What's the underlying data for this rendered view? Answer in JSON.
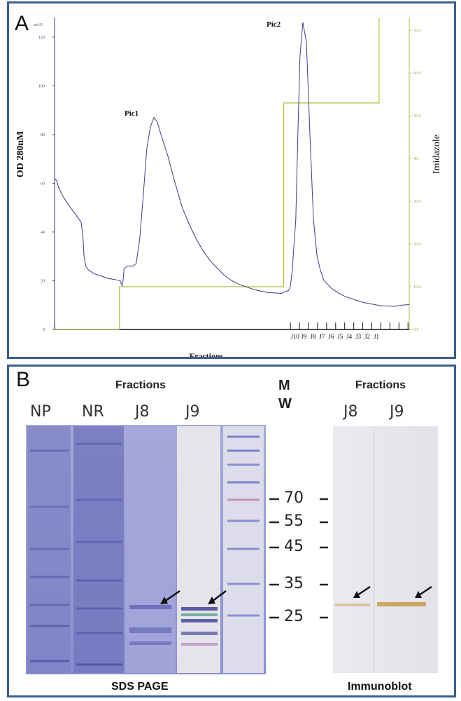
{
  "panel_a": {
    "label": "A",
    "left_axis_label": "OD 280nM",
    "right_axis_label": "Imidazole",
    "x_axis_label": "Fractions",
    "peak1_label": "Pic1",
    "peak2_label": "Pic2",
    "left_unit": "mAU",
    "fraction_labels": [
      "J10",
      "J9",
      "J8",
      "J7",
      "J6",
      "J5",
      "J4",
      "J3",
      "J2",
      "J1"
    ]
  },
  "chart_data": {
    "type": "line",
    "title": "",
    "xlabel": "Fractions",
    "ylabel": "OD 280nM",
    "y2label": "Imidazole",
    "ylim": [
      0,
      128
    ],
    "y_ticks": [
      "0",
      "20",
      "40",
      "60",
      "80",
      "100",
      "120"
    ],
    "y2lim": [
      0,
      73
    ],
    "y2_ticks": [
      "0.0",
      "10.0",
      "20.0",
      "30.0",
      "40",
      "50.0",
      "60.0",
      "70.0"
    ],
    "x_domain": [
      0,
      100
    ],
    "series": [
      {
        "name": "OD 280nM (mAU)",
        "color": "#3b3b8c",
        "x": [
          0,
          0.6,
          1.2,
          2.2,
          3.5,
          5.0,
          6.5,
          7.5,
          8.0,
          8.3,
          8.8,
          9.5,
          11,
          13,
          15,
          17,
          18.5,
          19,
          19.3,
          19.6,
          20.5,
          22,
          23,
          24,
          25,
          26,
          27,
          28,
          29,
          30,
          32,
          34,
          36,
          38,
          40,
          42,
          44,
          46,
          48,
          50,
          52,
          54,
          56,
          58,
          60,
          62,
          64,
          65,
          66,
          66.5,
          67,
          68,
          68.6,
          69.2,
          70,
          71,
          72,
          73,
          74,
          75,
          76,
          78,
          80,
          82,
          84,
          86,
          88,
          90,
          92,
          94,
          96,
          98,
          100
        ],
        "y": [
          62,
          61,
          58,
          55,
          52,
          49,
          46,
          44,
          38,
          30,
          26,
          24.5,
          23,
          22,
          21,
          20.5,
          20,
          18,
          20,
          25,
          26,
          26,
          27,
          37,
          55,
          74,
          83,
          87,
          85,
          80,
          71,
          60,
          50,
          43,
          37,
          32,
          28,
          25,
          22,
          20,
          18.5,
          17.5,
          16.5,
          15.8,
          15.2,
          15,
          14.8,
          15.5,
          16,
          18,
          24,
          45,
          80,
          112,
          126,
          118,
          80,
          45,
          30,
          24,
          20,
          17,
          15,
          13.5,
          12.5,
          11.5,
          10.8,
          10.3,
          9.7,
          9.6,
          9.5,
          10,
          10.2
        ]
      },
      {
        "name": "Imidazole",
        "color": "#a8c43c",
        "x": [
          0,
          18.3,
          18.3,
          64.6,
          64.6,
          91.5,
          91.5
        ],
        "y": [
          0,
          0,
          10,
          10,
          53,
          53,
          73
        ]
      }
    ]
  },
  "panel_b": {
    "label": "B",
    "fractions_left": "Fractions",
    "fractions_right": "Fractions",
    "mw_label_1": "M",
    "mw_label_2": "W",
    "lanes_left": [
      "NP",
      "NR",
      "J8",
      "J9"
    ],
    "lanes_right": [
      "J8",
      "J9"
    ],
    "markers": [
      "70",
      "55",
      "45",
      "35",
      "25"
    ],
    "sds_label": "SDS PAGE",
    "immuno_label": "Immunoblot"
  }
}
